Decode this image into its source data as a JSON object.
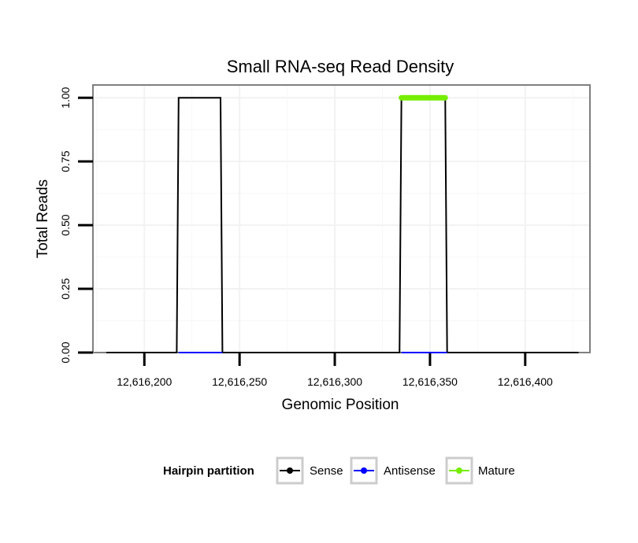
{
  "chart_data": {
    "type": "line",
    "title": "Small RNA-seq Read Density",
    "xlabel": "Genomic Position",
    "ylabel": "Total Reads",
    "xlim": [
      12616173,
      12616434
    ],
    "ylim": [
      0,
      1.05
    ],
    "x_ticks": [
      12616200,
      12616250,
      12616300,
      12616350,
      12616400
    ],
    "x_tick_labels": [
      "12,616,200",
      "12,616,250",
      "12,616,300",
      "12,616,350",
      "12,616,400"
    ],
    "y_ticks": [
      0,
      0.25,
      0.5,
      0.75,
      1.0
    ],
    "y_tick_labels": [
      "0.00",
      "0.25",
      "0.50",
      "0.75",
      "1.00"
    ],
    "grid": true,
    "legend": {
      "title": "Hairpin partition",
      "position": "bottom"
    },
    "series": [
      {
        "name": "Sense",
        "color": "#000000",
        "x": [
          12616180,
          12616217,
          12616218,
          12616240,
          12616241,
          12616334,
          12616335,
          12616358,
          12616359,
          12616428
        ],
        "y": [
          0,
          0,
          1,
          1,
          0,
          0,
          1,
          1,
          0,
          0
        ]
      },
      {
        "name": "Antisense",
        "color": "#0000ff",
        "x": [
          12616218,
          12616241,
          12616335,
          12616359
        ],
        "y": [
          0,
          0,
          0,
          0
        ],
        "segments": [
          [
            0,
            1
          ],
          [
            2,
            3
          ]
        ]
      },
      {
        "name": "Mature",
        "color": "#76ee00",
        "x": [
          12616335,
          12616358
        ],
        "y": [
          1,
          1
        ]
      }
    ]
  }
}
